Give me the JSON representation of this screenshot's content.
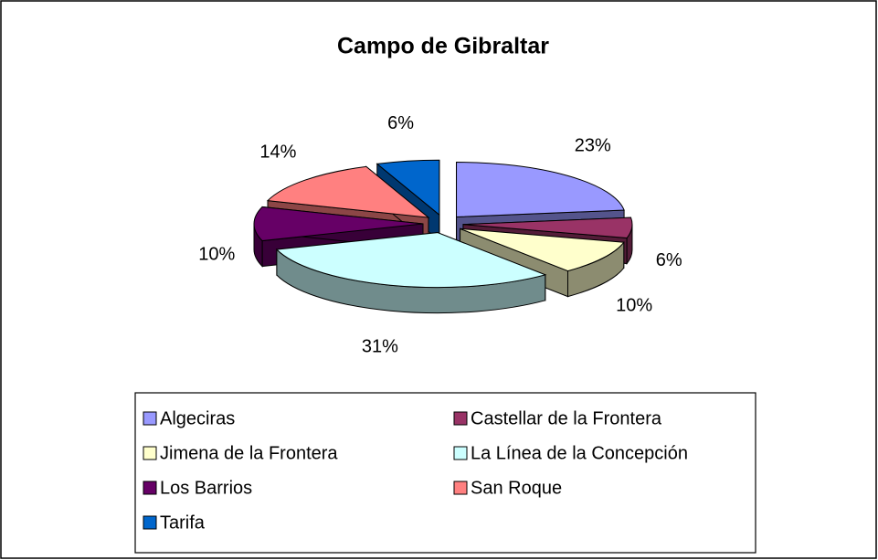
{
  "chart_data": {
    "type": "pie3d",
    "title": "Campo de Gibraltar",
    "categories": [
      "Algeciras",
      "Castellar de la Frontera",
      "Jimena de la Frontera",
      "La Línea de la Concepción",
      "Los Barrios",
      "San Roque",
      "Tarifa"
    ],
    "values": [
      23,
      6,
      10,
      31,
      10,
      14,
      6
    ],
    "value_labels": [
      "23%",
      "6%",
      "10%",
      "31%",
      "10%",
      "14%",
      "6%"
    ],
    "colors": [
      "#9999ff",
      "#993366",
      "#ffffcc",
      "#ccffff",
      "#660066",
      "#ff8080",
      "#0066cc"
    ],
    "legend": "bottom"
  }
}
